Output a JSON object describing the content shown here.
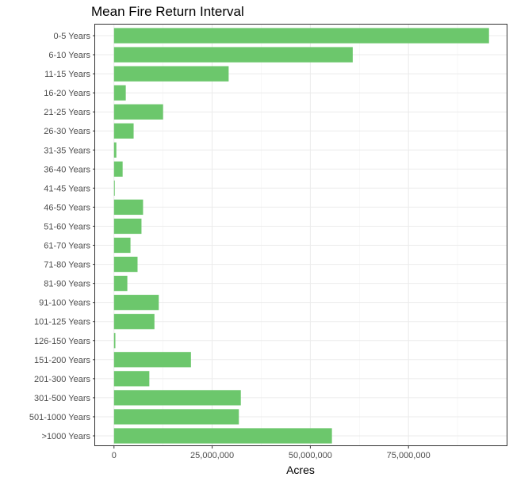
{
  "chart_data": {
    "type": "bar",
    "orientation": "horizontal",
    "title": "Mean Fire Return Interval",
    "xlabel": "Acres",
    "ylabel": "",
    "categories": [
      "0-5 Years",
      "6-10 Years",
      "11-15 Years",
      "16-20 Years",
      "21-25 Years",
      "26-30 Years",
      "31-35 Years",
      "36-40 Years",
      "41-45 Years",
      "46-50 Years",
      "51-60 Years",
      "61-70 Years",
      "71-80 Years",
      "81-90 Years",
      "91-100 Years",
      "101-125 Years",
      "126-150 Years",
      "151-200 Years",
      "201-300 Years",
      "301-500 Years",
      "501-1000 Years",
      ">1000 Years"
    ],
    "values": [
      95500000,
      60800000,
      29200000,
      3000000,
      12500000,
      5000000,
      600000,
      2200000,
      200000,
      7400000,
      7000000,
      4200000,
      6000000,
      3400000,
      11400000,
      10300000,
      350000,
      19600000,
      9000000,
      32300000,
      31800000,
      55500000
    ],
    "xlim": [
      -4800000,
      100200000
    ],
    "xticks": [
      0,
      25000000,
      50000000,
      75000000
    ],
    "xtick_labels": [
      "0",
      "25,000,000",
      "50,000,000",
      "75,000,000"
    ],
    "bar_color": "#6cc76c",
    "grid": true,
    "legend": "none"
  }
}
